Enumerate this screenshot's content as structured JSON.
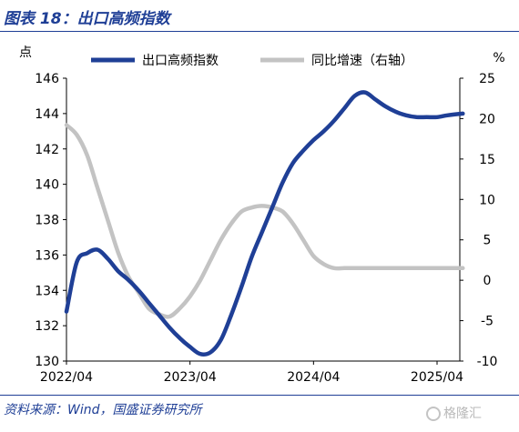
{
  "header": {
    "title": "图表 18：出口高频指数"
  },
  "footer": {
    "source": "资料来源：Wind，国盛证券研究所",
    "watermark": "格隆汇"
  },
  "chart_data": {
    "type": "line",
    "left_unit": "点",
    "right_unit": "%",
    "left_ylim": [
      130,
      146
    ],
    "left_ticks": [
      130,
      132,
      134,
      136,
      138,
      140,
      142,
      144,
      146
    ],
    "right_ylim": [
      -10,
      25
    ],
    "right_ticks": [
      -10,
      -5,
      0,
      5,
      10,
      15,
      20,
      25
    ],
    "x_tick_labels": [
      "2022/04",
      "2023/04",
      "2024/04",
      "2025/04"
    ],
    "x_tick_months": [
      0,
      12,
      24,
      36
    ],
    "grid": false,
    "legend_position": "top",
    "series": [
      {
        "name": "出口高频指数",
        "axis": "left",
        "color": "#1f3f96",
        "x_months": [
          0,
          1,
          2,
          3,
          4,
          5,
          6,
          7,
          8,
          9,
          10,
          11,
          12,
          13,
          14,
          15,
          16,
          17,
          18,
          19,
          20,
          21,
          22,
          23,
          24,
          25,
          26,
          27,
          28,
          29,
          30,
          31,
          32,
          33,
          34,
          35,
          36,
          37,
          38.5
        ],
        "values": [
          132.8,
          135.6,
          136.1,
          136.3,
          135.8,
          135.1,
          134.6,
          134.0,
          133.3,
          132.6,
          131.9,
          131.3,
          130.8,
          130.4,
          130.5,
          131.2,
          132.6,
          134.2,
          135.9,
          137.3,
          138.7,
          140.1,
          141.2,
          141.9,
          142.5,
          143.0,
          143.6,
          144.3,
          145.0,
          145.2,
          144.8,
          144.4,
          144.1,
          143.9,
          143.8,
          143.8,
          143.8,
          143.9,
          144.0
        ]
      },
      {
        "name": "同比增速（右轴）",
        "axis": "right",
        "color": "#c3c3c3",
        "x_months": [
          0,
          1,
          2,
          3,
          4,
          5,
          6,
          7,
          8,
          9,
          10,
          11,
          12,
          13,
          14,
          15,
          16,
          17,
          18,
          19,
          20,
          21,
          22,
          23,
          24,
          25,
          26,
          27,
          28,
          29,
          30,
          31,
          32,
          33,
          34,
          35,
          36,
          37,
          38.5
        ],
        "values": [
          19.2,
          18.0,
          15.5,
          11.5,
          7.5,
          3.5,
          0.5,
          -1.5,
          -3.5,
          -4.2,
          -4.5,
          -3.5,
          -2.0,
          0.0,
          2.5,
          5.0,
          7.0,
          8.5,
          9.0,
          9.2,
          9.0,
          8.5,
          7.0,
          5.0,
          3.0,
          2.0,
          1.5,
          1.5,
          1.5,
          1.5,
          1.5,
          1.5,
          1.5,
          1.5,
          1.5,
          1.5,
          1.5,
          1.5,
          1.5
        ]
      }
    ]
  }
}
